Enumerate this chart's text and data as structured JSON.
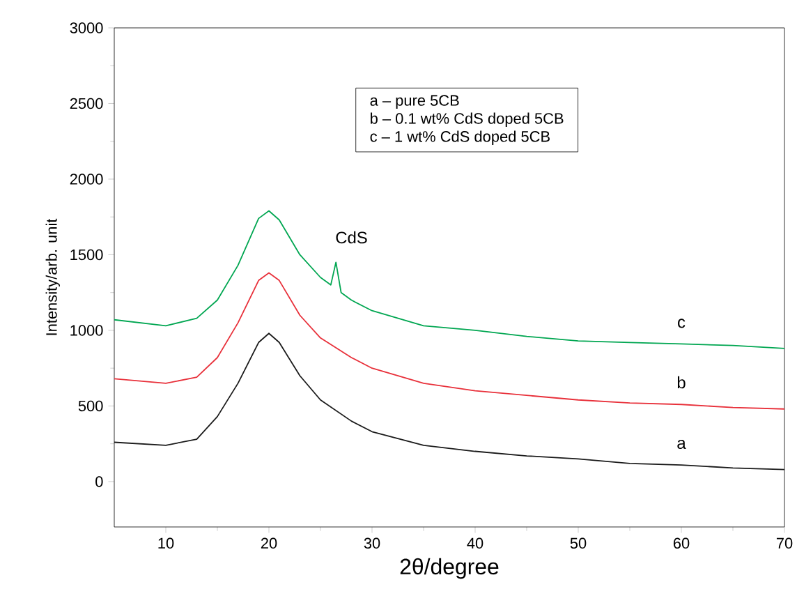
{
  "chart_data": {
    "type": "line",
    "xlabel": "2θ/degree",
    "ylabel": "Intensity/arb. unit",
    "xlim": [
      5,
      70
    ],
    "xticks": [
      10,
      20,
      30,
      40,
      50,
      60,
      70
    ],
    "ylim": [
      -300,
      3000
    ],
    "yticks": [
      0,
      500,
      1000,
      1500,
      2000,
      2500,
      3000
    ],
    "grid": false,
    "legend": false,
    "marker": "none",
    "line_style": "solid",
    "series": [
      {
        "name": "a",
        "color": "#1a1a1a",
        "x": [
          5,
          10,
          13,
          15,
          17,
          19,
          20,
          21,
          23,
          25,
          28,
          30,
          35,
          40,
          45,
          50,
          55,
          60,
          65,
          70
        ],
        "values": [
          260,
          240,
          280,
          430,
          650,
          920,
          980,
          920,
          700,
          540,
          400,
          330,
          240,
          200,
          170,
          150,
          120,
          110,
          90,
          80
        ]
      },
      {
        "name": "b",
        "color": "#e8303a",
        "x": [
          5,
          10,
          13,
          15,
          17,
          19,
          20,
          21,
          23,
          25,
          28,
          30,
          35,
          40,
          45,
          50,
          55,
          60,
          65,
          70
        ],
        "values": [
          680,
          650,
          690,
          820,
          1050,
          1330,
          1380,
          1330,
          1100,
          950,
          820,
          750,
          650,
          600,
          570,
          540,
          520,
          510,
          490,
          480
        ]
      },
      {
        "name": "c",
        "color": "#00a651",
        "x": [
          5,
          10,
          13,
          15,
          17,
          19,
          20,
          21,
          23,
          25,
          26,
          26.5,
          27,
          28,
          30,
          35,
          40,
          45,
          50,
          55,
          60,
          65,
          70
        ],
        "values": [
          1070,
          1030,
          1080,
          1200,
          1430,
          1740,
          1790,
          1730,
          1500,
          1350,
          1300,
          1450,
          1250,
          1200,
          1130,
          1030,
          1000,
          960,
          930,
          920,
          910,
          900,
          880
        ]
      }
    ],
    "annotations": [
      "a – pure 5CB",
      "b – 0.1 wt% CdS doped 5CB",
      "c – 1 wt% CdS doped 5CB",
      {
        "text": "CdS",
        "x": 26.5,
        "y": 1450
      }
    ]
  }
}
